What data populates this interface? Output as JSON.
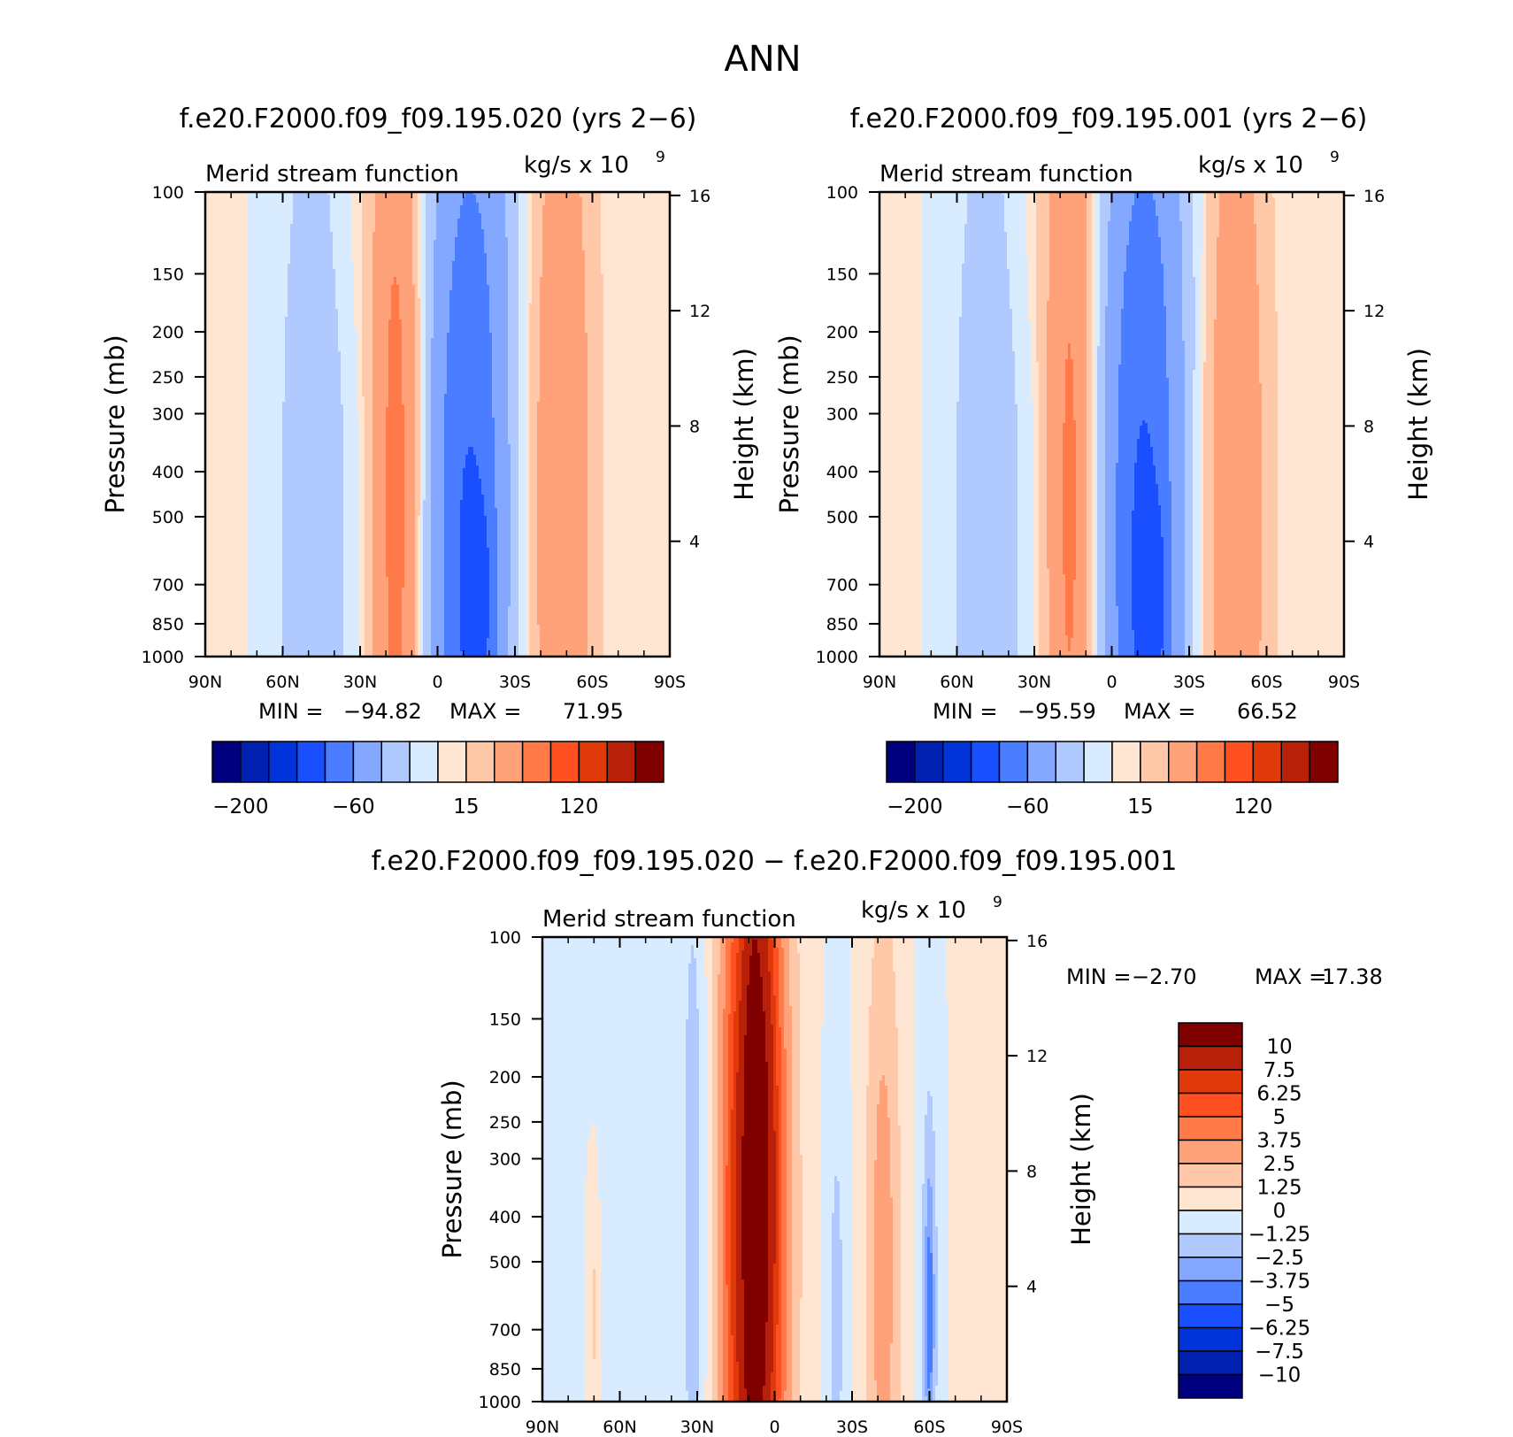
{
  "figure": {
    "title": "ANN",
    "left_title": "f.e20.F2000.f09_f09.195.020 (yrs 2−6)",
    "right_title": "f.e20.F2000.f09_f09.195.001 (yrs 2−6)",
    "diff_title": "f.e20.F2000.f09_f09.195.020 − f.e20.F2000.f09_f09.195.001"
  },
  "chart_data": [
    {
      "type": "contour",
      "id": "case1",
      "variable": "Merid stream function",
      "units": "kg/s x 10",
      "units_exp": "9",
      "ylabel": "Pressure (mb)",
      "y2label": "Height (km)",
      "y_ticks": [
        "100",
        "150",
        "200",
        "250",
        "300",
        "400",
        "500",
        "700",
        "850",
        "1000"
      ],
      "y2_ticks": [
        "16",
        "12",
        "8",
        "4"
      ],
      "x_ticks": [
        "90N",
        "60N",
        "30N",
        "0",
        "30S",
        "60S",
        "90S"
      ],
      "min_label": "MIN =",
      "min_value": "−94.82",
      "max_label": "MAX =",
      "max_value": "71.95",
      "colorbar": {
        "labels": [
          "−200",
          "−60",
          "15",
          "120"
        ],
        "colors": [
          "#00007f",
          "#0021b0",
          "#0033d9",
          "#1a4fff",
          "#4a7dff",
          "#84a8ff",
          "#b0caff",
          "#d8ebff",
          "#ffe6d2",
          "#ffc8a8",
          "#ffa27a",
          "#ff7a48",
          "#ff5022",
          "#e03a0a",
          "#b8200a",
          "#800000"
        ]
      },
      "cells": [
        {
          "lat": -77,
          "p": 500,
          "sw": 4,
          "sp": 0.7,
          "v": 0.5
        },
        {
          "lat": -48,
          "p": 520,
          "sw": 9,
          "sp": 0.7,
          "v": -20
        },
        {
          "lat": -16,
          "p": 470,
          "sw": 6,
          "sp": 0.75,
          "v": 50
        },
        {
          "lat": 12,
          "p": 540,
          "sw": 11,
          "sp": 0.8,
          "v": -60
        },
        {
          "lat": 16,
          "p": 760,
          "sw": 4,
          "sp": 0.15,
          "v": -25
        },
        {
          "lat": 48,
          "p": 480,
          "sw": 8,
          "sp": 0.75,
          "v": 35
        },
        {
          "lat": -30,
          "p": 120,
          "sw": 12,
          "sp": 0.25,
          "v": 3
        },
        {
          "lat": 25,
          "p": 120,
          "sw": 8,
          "sp": 0.25,
          "v": -3
        }
      ]
    },
    {
      "type": "contour",
      "id": "case2",
      "variable": "Merid stream function",
      "units": "kg/s x 10",
      "units_exp": "9",
      "ylabel": "Pressure (mb)",
      "y2label": "Height (km)",
      "y_ticks": [
        "100",
        "150",
        "200",
        "250",
        "300",
        "400",
        "500",
        "700",
        "850",
        "1000"
      ],
      "y2_ticks": [
        "16",
        "12",
        "8",
        "4"
      ],
      "x_ticks": [
        "90N",
        "60N",
        "30N",
        "0",
        "30S",
        "60S",
        "90S"
      ],
      "min_label": "MIN =",
      "min_value": "−95.59",
      "max_label": "MAX =",
      "max_value": "66.52",
      "colorbar": {
        "labels": [
          "−200",
          "−60",
          "15",
          "120"
        ],
        "colors": [
          "#00007f",
          "#0021b0",
          "#0033d9",
          "#1a4fff",
          "#4a7dff",
          "#84a8ff",
          "#b0caff",
          "#d8ebff",
          "#ffe6d2",
          "#ffc8a8",
          "#ffa27a",
          "#ff7a48",
          "#ff5022",
          "#e03a0a",
          "#b8200a",
          "#800000"
        ]
      },
      "cells": [
        {
          "lat": -77,
          "p": 500,
          "sw": 4,
          "sp": 0.7,
          "v": 0.5
        },
        {
          "lat": -48,
          "p": 520,
          "sw": 9,
          "sp": 0.7,
          "v": -20
        },
        {
          "lat": -16,
          "p": 480,
          "sw": 6,
          "sp": 0.75,
          "v": 46
        },
        {
          "lat": 12,
          "p": 540,
          "sw": 11,
          "sp": 0.8,
          "v": -62
        },
        {
          "lat": 16,
          "p": 760,
          "sw": 4,
          "sp": 0.15,
          "v": -25
        },
        {
          "lat": 48,
          "p": 490,
          "sw": 8,
          "sp": 0.75,
          "v": 33
        },
        {
          "lat": -30,
          "p": 120,
          "sw": 12,
          "sp": 0.25,
          "v": 3
        },
        {
          "lat": 25,
          "p": 120,
          "sw": 8,
          "sp": 0.25,
          "v": -3
        }
      ]
    },
    {
      "type": "contour",
      "id": "diff",
      "variable": "Merid stream function",
      "units": "kg/s x 10",
      "units_exp": "9",
      "ylabel": "Pressure (mb)",
      "y2label": "Height (km)",
      "y_ticks": [
        "100",
        "150",
        "200",
        "250",
        "300",
        "400",
        "500",
        "700",
        "850",
        "1000"
      ],
      "y2_ticks": [
        "16",
        "12",
        "8",
        "4"
      ],
      "x_ticks": [
        "90N",
        "60N",
        "30N",
        "0",
        "30S",
        "60S",
        "90S"
      ],
      "min_label": "MIN =",
      "min_value": "−2.70",
      "max_label": "MAX =",
      "max_value": "17.38",
      "colorbar": {
        "labels": [
          "10",
          "7.5",
          "6.25",
          "5",
          "3.75",
          "2.5",
          "1.25",
          "0",
          "−1.25",
          "−2.5",
          "−3.75",
          "−5",
          "−6.25",
          "−7.5",
          "−10"
        ],
        "colors": [
          "#800000",
          "#b8200a",
          "#e03a0a",
          "#ff5022",
          "#ff7a48",
          "#ffa27a",
          "#ffc8a8",
          "#ffe6d2",
          "#d8ebff",
          "#b0caff",
          "#84a8ff",
          "#4a7dff",
          "#1a4fff",
          "#0033d9",
          "#0021b0",
          "#00007f"
        ]
      },
      "cells": [
        {
          "lat": -8,
          "p": 420,
          "sw": 9,
          "sp": 0.85,
          "v": 10
        },
        {
          "lat": -6,
          "p": 300,
          "sw": 4,
          "sp": 0.35,
          "v": 3
        },
        {
          "lat": -8,
          "p": 420,
          "sw": 2,
          "sp": 0.35,
          "v": 6
        },
        {
          "lat": -31,
          "p": 380,
          "sw": 4,
          "sp": 0.65,
          "v": -2.2
        },
        {
          "lat": 42,
          "p": 520,
          "sw": 5,
          "sp": 0.6,
          "v": 3.2
        },
        {
          "lat": 24,
          "p": 650,
          "sw": 3,
          "sp": 0.45,
          "v": -1.6
        },
        {
          "lat": 60,
          "p": 600,
          "sw": 3,
          "sp": 0.45,
          "v": -1.8
        },
        {
          "lat": 60,
          "p": 650,
          "sw": 1.2,
          "sp": 0.2,
          "v": -3
        },
        {
          "lat": -70,
          "p": 650,
          "sw": 1.2,
          "sp": 0.15,
          "v": 1.6
        },
        {
          "lat": -60,
          "p": 500,
          "sw": 5,
          "sp": 0.9,
          "v": -0.3
        },
        {
          "lat": 78,
          "p": 250,
          "sw": 5,
          "sp": 0.9,
          "v": 0.6
        }
      ]
    }
  ]
}
